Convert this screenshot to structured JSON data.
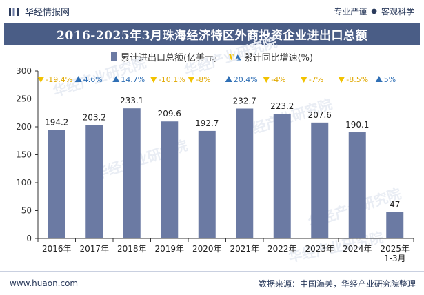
{
  "header": {
    "brand": "华经情报网",
    "tagline_left": "专业严谨",
    "tagline_sep": "●",
    "tagline_right": "客观科学"
  },
  "footer": {
    "url": "www.huaon.com",
    "source": "数据来源：中国海关，华经产业研究院整理"
  },
  "colors": {
    "bar": "#6b7aa3",
    "title_bg": "#4a5d86",
    "up": "#2f6fb5",
    "down": "#f2c200",
    "down_text": "#e0a800"
  },
  "chart_data": {
    "type": "bar",
    "title": "2016-2025年3月珠海经济特区外商投资企业进出口总额",
    "categories": [
      "2016年",
      "2017年",
      "2018年",
      "2019年",
      "2020年",
      "2021年",
      "2022年",
      "2023年",
      "2024年",
      "2025年\n1-3月"
    ],
    "series": [
      {
        "name": "累计进出口总额(亿美元)",
        "values": [
          194.2,
          203.2,
          233.1,
          209.6,
          192.7,
          232.7,
          223.2,
          207.6,
          190.1,
          47
        ]
      },
      {
        "name": "累计同比增速(%)",
        "values": [
          -19.4,
          4.6,
          14.7,
          -10.1,
          -8,
          20.4,
          -4,
          -7,
          -8.5,
          5
        ],
        "labels": [
          "-19.4%",
          "4.6%",
          "14.7%",
          "-10.1%",
          "-8%",
          "20.4%",
          "-4%",
          "-7%",
          "-8.5%",
          "5%"
        ]
      }
    ],
    "ylim": [
      0,
      300
    ],
    "yticks": [
      0,
      50,
      100,
      150,
      200,
      250,
      300
    ],
    "legend_position": "top-center",
    "grid": false
  },
  "watermark": "华经产业研究院"
}
